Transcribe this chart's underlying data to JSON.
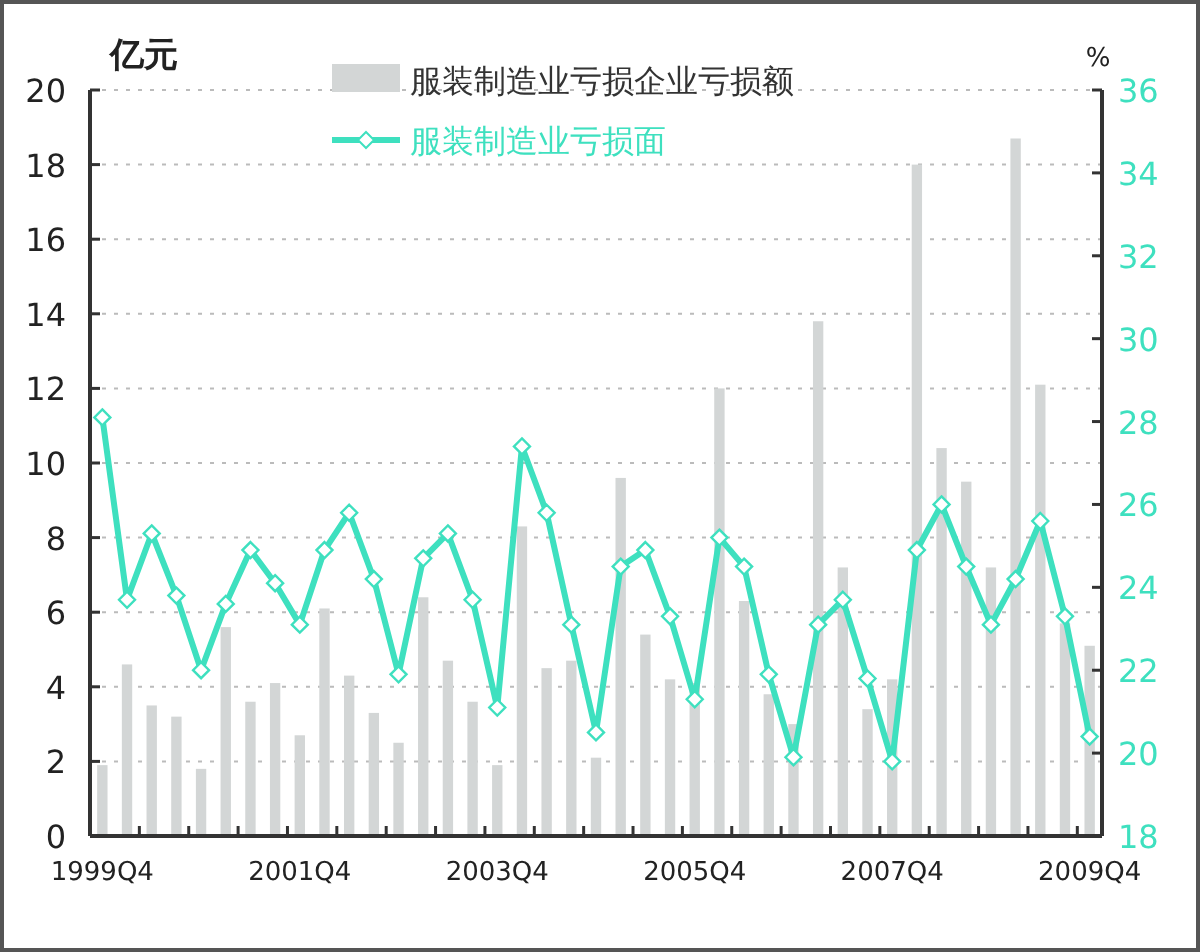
{
  "chart_data": {
    "type": "bar",
    "ylabel": "亿元",
    "y2label": "%",
    "categories": [
      "1999Q4",
      null,
      null,
      null,
      null,
      null,
      null,
      null,
      "2001Q4",
      null,
      null,
      null,
      null,
      null,
      null,
      null,
      "2003Q4",
      null,
      null,
      null,
      null,
      null,
      null,
      null,
      "2005Q4",
      null,
      null,
      null,
      null,
      null,
      null,
      null,
      "2007Q4",
      null,
      null,
      null,
      null,
      null,
      null,
      null,
      "2009Q4"
    ],
    "series": [
      {
        "name": "服装制造业亏损企业亏损额",
        "color": "#d3d6d6",
        "values": [
          1.9,
          4.6,
          3.5,
          3.2,
          1.8,
          5.6,
          3.6,
          4.1,
          2.7,
          6.1,
          4.3,
          3.3,
          2.5,
          6.4,
          4.7,
          3.6,
          1.9,
          8.3,
          4.5,
          4.7,
          2.1,
          9.6,
          5.4,
          4.2,
          4.1,
          12.0,
          6.3,
          3.8,
          3.0,
          13.8,
          7.2,
          3.4,
          4.2,
          18.0,
          10.4,
          9.5,
          7.2,
          18.7,
          12.1,
          5.7,
          5.1
        ]
      },
      {
        "name": "服装制造业亏损面",
        "type": "line",
        "axis": "y2",
        "color": "#3ee0bf",
        "marker": "diamond",
        "values": [
          28.1,
          23.7,
          25.3,
          23.8,
          22.0,
          23.6,
          24.9,
          24.1,
          23.1,
          24.9,
          25.8,
          24.2,
          21.9,
          24.7,
          25.3,
          23.7,
          21.1,
          27.4,
          25.8,
          23.1,
          20.5,
          24.5,
          24.9,
          23.3,
          21.3,
          25.2,
          24.5,
          21.9,
          19.9,
          23.1,
          23.7,
          21.8,
          19.8,
          24.9,
          26.0,
          24.5,
          23.1,
          24.2,
          25.6,
          23.3,
          20.4
        ]
      }
    ],
    "ylim": [
      0,
      20
    ],
    "yticks": [
      0,
      2,
      4,
      6,
      8,
      10,
      12,
      14,
      16,
      18,
      20
    ],
    "y2lim": [
      18,
      36
    ],
    "y2ticks": [
      18,
      20,
      22,
      24,
      26,
      28,
      30,
      32,
      34,
      36
    ],
    "grid": "y",
    "legend": "top"
  }
}
